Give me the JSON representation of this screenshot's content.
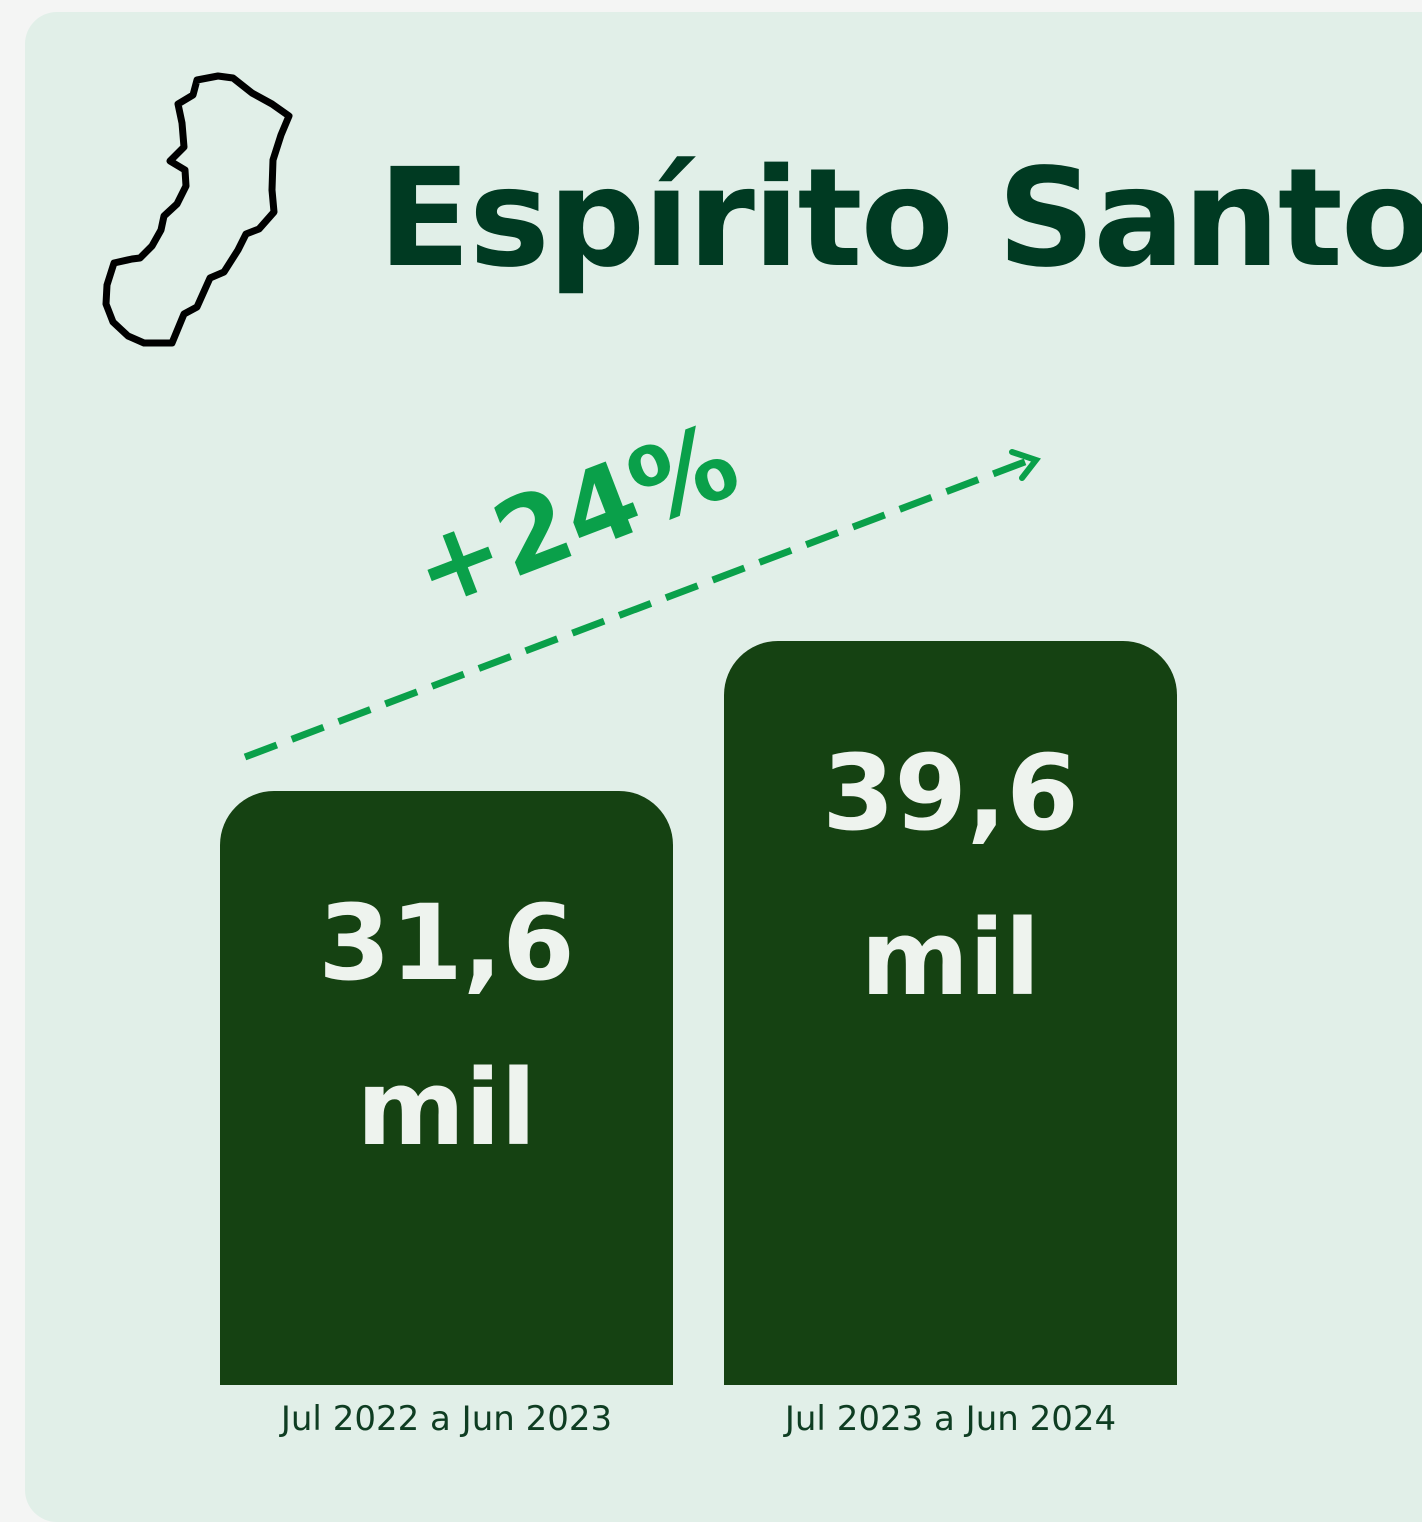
{
  "chart_data": {
    "type": "bar",
    "title": "Espírito Santo",
    "categories": [
      "Jul 2022 a Jun 2023",
      "Jul 2023 a Jun 2024"
    ],
    "values": [
      31.6,
      39.6
    ],
    "value_labels": [
      "31,6 mil",
      "39,6 mil"
    ],
    "color": "#154212",
    "annotation": "+24%"
  }
}
